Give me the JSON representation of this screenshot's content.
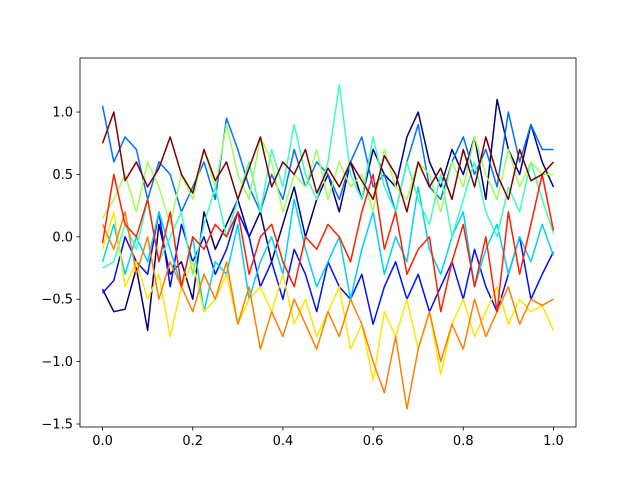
{
  "chart_data": {
    "type": "line",
    "x": [
      0,
      0.025,
      0.05,
      0.075,
      0.1,
      0.125,
      0.15,
      0.175,
      0.2,
      0.225,
      0.25,
      0.275,
      0.3,
      0.325,
      0.35,
      0.375,
      0.4,
      0.425,
      0.45,
      0.475,
      0.5,
      0.525,
      0.55,
      0.575,
      0.6,
      0.625,
      0.65,
      0.675,
      0.7,
      0.725,
      0.75,
      0.775,
      0.8,
      0.825,
      0.85,
      0.875,
      0.9,
      0.925,
      0.95,
      0.975,
      1
    ],
    "series": [
      {
        "color": "#00007f",
        "values": [
          -0.42,
          -0.6,
          -0.58,
          -0.25,
          -0.75,
          0.1,
          -0.3,
          -0.2,
          -0.5,
          0.2,
          -0.1,
          0.1,
          0.3,
          0.0,
          0.2,
          -0.2,
          0.1,
          0.4,
          0.0,
          0.3,
          0.5,
          0.2,
          0.6,
          0.3,
          0.7,
          0.5,
          0.4,
          0.8,
          1.0,
          0.6,
          0.4,
          0.7,
          0.5,
          0.8,
          0.3,
          1.1,
          0.7,
          0.5,
          0.9,
          0.6,
          0.4
        ]
      },
      {
        "color": "#0010ff",
        "values": [
          -0.45,
          -0.35,
          0.0,
          -0.2,
          -0.3,
          0.2,
          -0.4,
          0.1,
          -0.2,
          0.0,
          -0.3,
          -0.1,
          0.2,
          0.0,
          -0.4,
          -0.2,
          -0.5,
          -0.1,
          -0.3,
          -0.6,
          -0.2,
          -0.4,
          -0.5,
          -0.3,
          -0.7,
          -0.4,
          -0.2,
          -0.5,
          -0.3,
          -0.6,
          -0.4,
          -0.2,
          -0.5,
          -0.1,
          -0.4,
          -0.6,
          -0.3,
          0.0,
          -0.5,
          -0.3,
          -0.12
        ]
      },
      {
        "color": "#0070ff",
        "values": [
          1.05,
          0.6,
          0.8,
          0.7,
          0.3,
          0.6,
          0.5,
          0.2,
          0.4,
          0.6,
          0.3,
          0.95,
          0.7,
          0.4,
          0.2,
          0.5,
          0.3,
          0.7,
          0.4,
          0.6,
          0.5,
          0.3,
          0.6,
          0.8,
          0.4,
          0.5,
          0.2,
          0.6,
          0.9,
          0.4,
          0.3,
          0.6,
          0.8,
          0.5,
          0.7,
          0.4,
          1.0,
          0.6,
          0.9,
          0.7,
          0.7
        ]
      },
      {
        "color": "#00d0ff",
        "values": [
          -0.2,
          0.1,
          -0.3,
          0.0,
          -0.2,
          0.2,
          -0.1,
          -0.4,
          0.0,
          -0.6,
          -0.2,
          -0.3,
          0.1,
          -0.5,
          -0.2,
          0.0,
          -0.3,
          0.3,
          -0.1,
          -0.4,
          -0.2,
          0.0,
          -0.5,
          -0.1,
          0.2,
          -0.3,
          0.0,
          -0.2,
          0.4,
          -0.1,
          -0.3,
          0.0,
          0.2,
          -0.4,
          -0.1,
          0.1,
          -0.3,
          0.0,
          -0.2,
          0.1,
          -0.15
        ]
      },
      {
        "color": "#3dffba",
        "values": [
          -0.25,
          -0.2,
          0.1,
          -0.1,
          0.3,
          -0.2,
          0.0,
          0.2,
          -0.3,
          0.1,
          0.4,
          0.0,
          0.3,
          0.6,
          0.2,
          0.7,
          0.4,
          0.9,
          0.5,
          0.3,
          0.6,
          1.22,
          0.5,
          0.3,
          0.8,
          0.4,
          0.2,
          0.6,
          0.3,
          0.1,
          0.5,
          0.0,
          0.3,
          0.6,
          0.2,
          0.0,
          0.4,
          0.2,
          0.6,
          0.3,
          0.03
        ]
      },
      {
        "color": "#a0ff57",
        "values": [
          0.15,
          0.3,
          0.5,
          0.2,
          0.6,
          0.4,
          0.1,
          0.5,
          0.3,
          0.7,
          0.4,
          0.9,
          0.5,
          0.3,
          0.8,
          0.6,
          0.2,
          0.5,
          0.4,
          0.7,
          0.3,
          0.6,
          0.4,
          0.5,
          0.2,
          0.7,
          0.4,
          0.3,
          0.6,
          0.5,
          0.2,
          0.6,
          0.4,
          0.8,
          0.5,
          0.3,
          0.7,
          0.4,
          0.6,
          0.5,
          0.5
        ]
      },
      {
        "color": "#ffe600",
        "values": [
          -0.1,
          0.2,
          -0.4,
          -0.2,
          -0.5,
          -0.3,
          -0.8,
          -0.4,
          -0.2,
          -0.6,
          -0.5,
          -0.3,
          -0.7,
          -0.5,
          -0.4,
          -0.6,
          -0.3,
          -0.7,
          -0.5,
          -0.8,
          -0.6,
          -0.4,
          -0.9,
          -0.7,
          -1.15,
          -0.6,
          -0.8,
          -0.5,
          -0.9,
          -0.6,
          -1.1,
          -0.7,
          -0.5,
          -0.8,
          -0.6,
          -0.4,
          -0.7,
          -0.5,
          -0.6,
          -0.55,
          -0.75
        ]
      },
      {
        "color": "#ff8000",
        "values": [
          0.1,
          -0.1,
          0.2,
          -0.3,
          0.0,
          -0.5,
          -0.2,
          -0.4,
          -0.6,
          -0.3,
          -0.5,
          -0.2,
          -0.7,
          -0.4,
          -0.9,
          -0.6,
          -0.8,
          -0.5,
          -0.7,
          -0.9,
          -0.6,
          -0.8,
          -0.5,
          -0.7,
          -1.0,
          -1.25,
          -0.8,
          -1.38,
          -0.9,
          -0.6,
          -1.0,
          -0.7,
          -0.9,
          -0.5,
          -0.8,
          -0.6,
          -0.4,
          -0.7,
          -0.5,
          -0.55,
          -0.5
        ]
      },
      {
        "color": "#ff2000",
        "values": [
          -0.05,
          0.5,
          0.1,
          0.0,
          0.3,
          -0.2,
          0.2,
          -0.4,
          0.0,
          -0.1,
          0.1,
          0.0,
          0.2,
          -0.3,
          0.0,
          0.1,
          -0.2,
          -0.4,
          0.0,
          -0.1,
          0.1,
          0.0,
          -0.2,
          0.2,
          0.5,
          -0.1,
          0.2,
          -0.3,
          -0.1,
          0.0,
          -0.6,
          -0.2,
          0.1,
          -0.4,
          0.0,
          -0.6,
          0.2,
          -0.3,
          0.1,
          0.5,
          0.05
        ]
      },
      {
        "color": "#7f0000",
        "values": [
          0.75,
          1.0,
          0.45,
          0.6,
          0.4,
          0.55,
          0.8,
          0.5,
          0.35,
          0.7,
          0.45,
          0.6,
          0.3,
          0.55,
          0.8,
          0.4,
          0.6,
          0.5,
          0.7,
          0.35,
          0.55,
          0.4,
          0.6,
          0.45,
          0.3,
          0.65,
          0.5,
          0.2,
          0.6,
          0.4,
          0.55,
          0.3,
          0.7,
          0.4,
          0.8,
          0.5,
          0.3,
          0.7,
          0.45,
          0.5,
          0.6
        ]
      }
    ],
    "xlim": [
      -0.05,
      1.05
    ],
    "xticks": [
      {
        "value": 0,
        "label": "0.0"
      },
      0.2,
      0.4,
      0.6,
      0.8,
      {
        "value": 1,
        "label": "1.0"
      }
    ],
    "ylim": [
      -1.524,
      1.433
    ],
    "yticks": [
      {
        "value": -1.5,
        "label": "−1.5"
      },
      {
        "value": -1,
        "label": "−1.0"
      },
      {
        "value": -0.5,
        "label": "−0.5"
      },
      {
        "value": 0,
        "label": "0.0"
      },
      0.5,
      {
        "value": 1,
        "label": "1.0"
      }
    ],
    "grid": false
  }
}
